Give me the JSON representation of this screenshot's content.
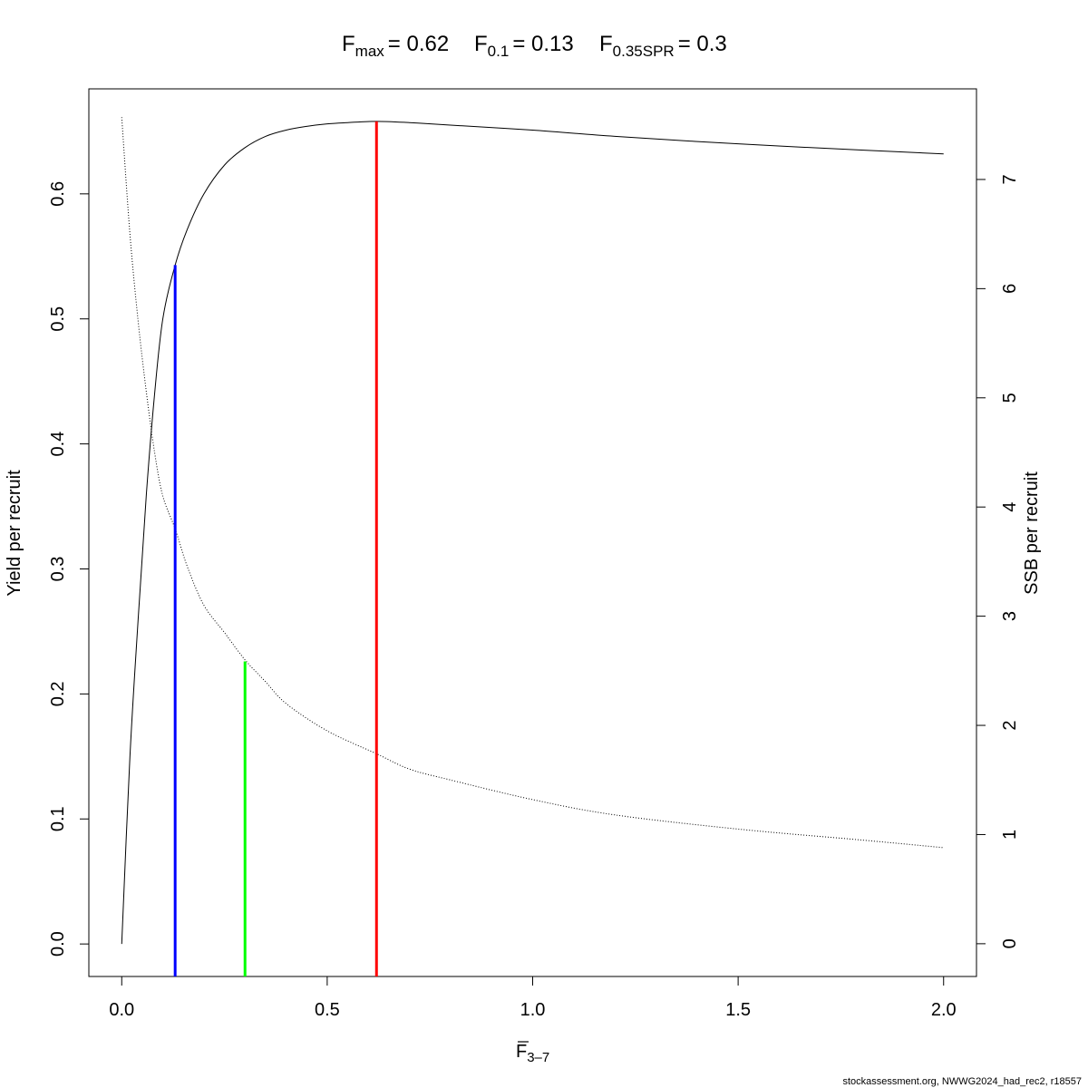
{
  "title": {
    "fmax": {
      "sym": "F",
      "sub": "max",
      "value": "= 0.62"
    },
    "f01": {
      "sym": "F",
      "sub": "0.1",
      "value": "= 0.13"
    },
    "fspr": {
      "sym": "F",
      "sub": "0.35SPR",
      "value": "= 0.3"
    }
  },
  "axes": {
    "x_label": {
      "sym": "F",
      "sub": "3–7"
    },
    "y_left_label": "Yield per recruit",
    "y_right_label": "SSB per recruit"
  },
  "footer": "stockassessment.org, NWWG2024_had_rec2, r18557",
  "chart_data": {
    "type": "line",
    "xlim": [
      -0.08,
      2.08
    ],
    "ylim_left": [
      -0.026,
      0.684
    ],
    "ylim_right": [
      -0.3,
      7.83
    ],
    "x_ticks": [
      0.0,
      0.5,
      1.0,
      1.5,
      2.0
    ],
    "x_tick_labels": [
      "0.0",
      "0.5",
      "1.0",
      "1.5",
      "2.0"
    ],
    "y_left_ticks": [
      0.0,
      0.1,
      0.2,
      0.3,
      0.4,
      0.5,
      0.6
    ],
    "y_left_tick_labels": [
      "0.0",
      "0.1",
      "0.2",
      "0.3",
      "0.4",
      "0.5",
      "0.6"
    ],
    "y_right_ticks": [
      0,
      1,
      2,
      3,
      4,
      5,
      6,
      7
    ],
    "y_right_tick_labels": [
      "0",
      "1",
      "2",
      "3",
      "4",
      "5",
      "6",
      "7"
    ],
    "grid": false,
    "series": [
      {
        "axis": "left",
        "style": "solid",
        "color": "#000000",
        "x": [
          0,
          0.02,
          0.04,
          0.06,
          0.08,
          0.1,
          0.13,
          0.16,
          0.2,
          0.25,
          0.3,
          0.35,
          0.4,
          0.45,
          0.5,
          0.55,
          0.62,
          0.7,
          0.8,
          1.0,
          1.2,
          1.5,
          1.8,
          2.0
        ],
        "y": [
          0.0,
          0.15,
          0.26,
          0.36,
          0.44,
          0.5,
          0.543,
          0.572,
          0.6,
          0.623,
          0.637,
          0.646,
          0.651,
          0.654,
          0.656,
          0.657,
          0.658,
          0.657,
          0.655,
          0.651,
          0.646,
          0.64,
          0.635,
          0.632
        ]
      },
      {
        "axis": "right",
        "style": "dotted",
        "color": "#000000",
        "x": [
          0,
          0.02,
          0.04,
          0.06,
          0.08,
          0.1,
          0.13,
          0.16,
          0.2,
          0.25,
          0.3,
          0.35,
          0.4,
          0.5,
          0.62,
          0.7,
          0.8,
          1.0,
          1.2,
          1.5,
          1.8,
          2.0
        ],
        "y": [
          7.57,
          6.5,
          5.7,
          5.05,
          4.5,
          4.1,
          3.8,
          3.45,
          3.1,
          2.85,
          2.6,
          2.4,
          2.2,
          1.95,
          1.74,
          1.6,
          1.5,
          1.32,
          1.18,
          1.05,
          0.95,
          0.88
        ]
      }
    ],
    "reference_lines": [
      {
        "name": "F0.1",
        "x": 0.13,
        "y_top": 0.543,
        "color": "#0000ff"
      },
      {
        "name": "F0.35SPR",
        "x": 0.3,
        "y_top": 0.226,
        "color": "#00ff00"
      },
      {
        "name": "Fmax",
        "x": 0.62,
        "y_top": 0.658,
        "color": "#ff0000"
      }
    ]
  }
}
